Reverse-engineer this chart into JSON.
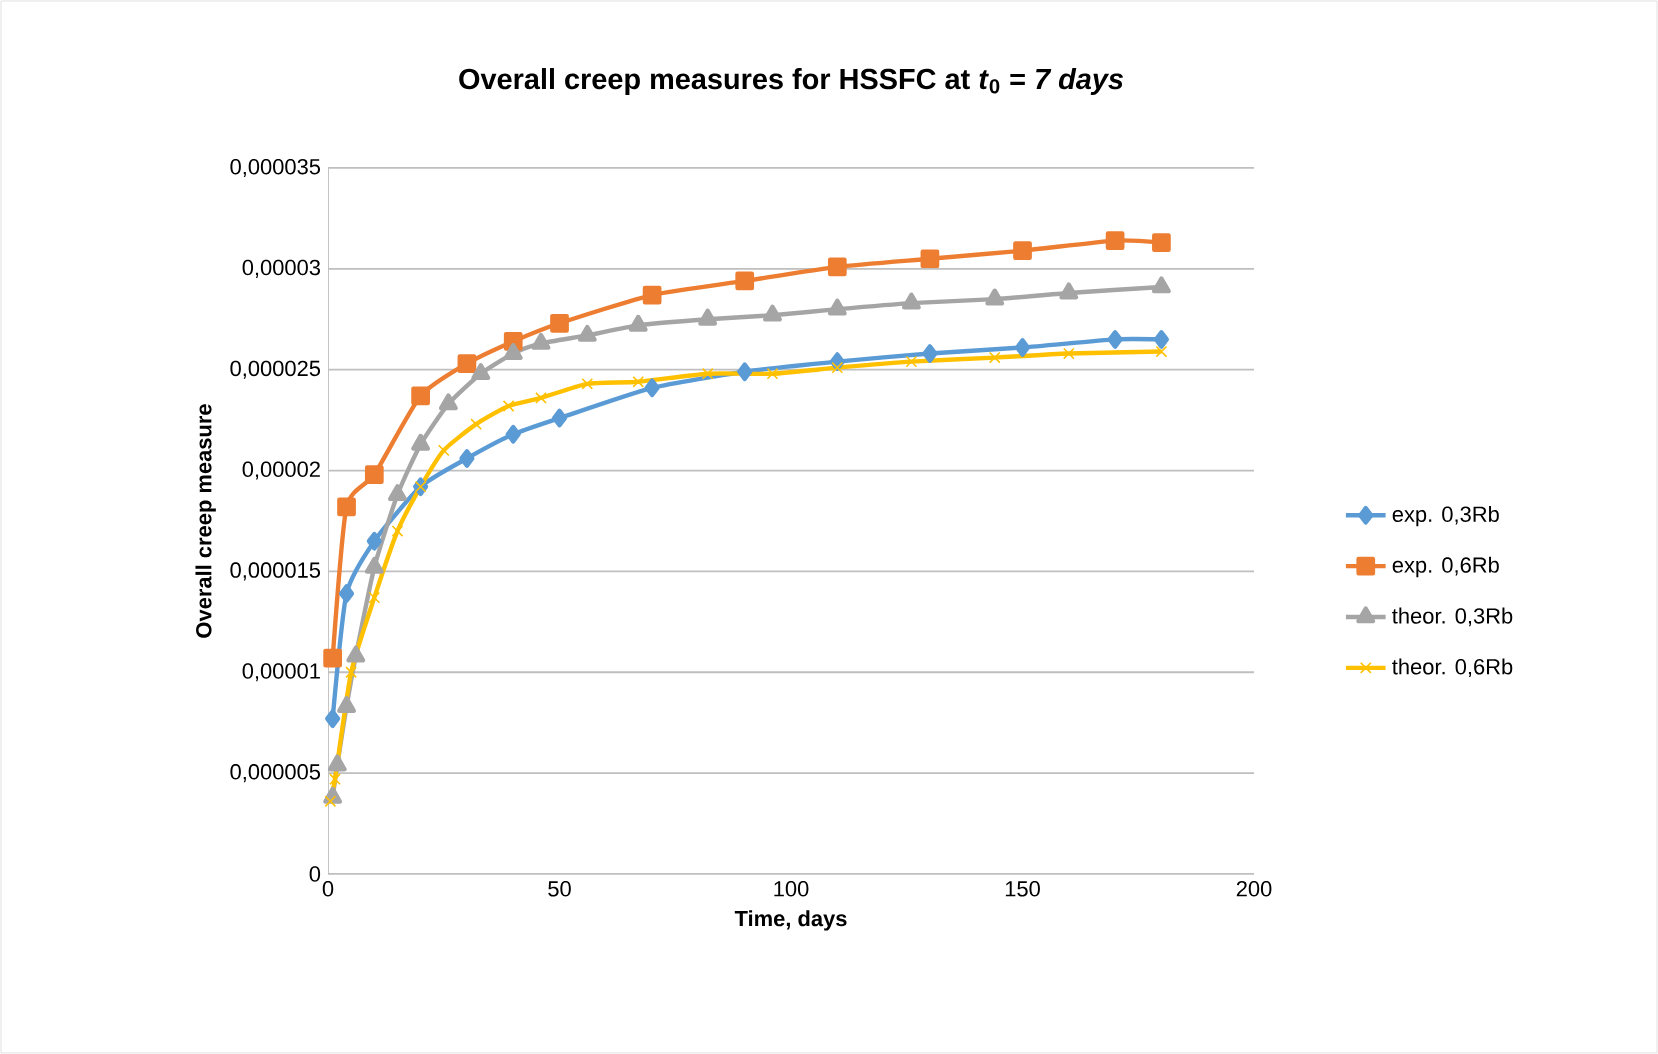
{
  "chart_data": {
    "type": "line",
    "title": "Overall creep measures for HSSFC at *t*$_{0}$ = *7 days*",
    "xlabel": "Time, days",
    "ylabel": "Overall creep measure",
    "xlim": [
      0,
      200
    ],
    "xticks": [
      0,
      50,
      100,
      150,
      200
    ],
    "ylim": [
      0,
      3.5e-05
    ],
    "yticks": [
      {
        "value": 0,
        "label": "0"
      },
      {
        "value": 5e-06,
        "label": "0,000005"
      },
      {
        "value": 1e-05,
        "label": "0,00001"
      },
      {
        "value": 1.5e-05,
        "label": "0,000015"
      },
      {
        "value": 2e-05,
        "label": "0,00002"
      },
      {
        "value": 2.5e-05,
        "label": "0,000025"
      },
      {
        "value": 3e-05,
        "label": "0,00003"
      },
      {
        "value": 3.5e-05,
        "label": "0,000035"
      }
    ],
    "grid": "y",
    "legend": "right",
    "line_style": "solid",
    "series": [
      {
        "name": "exp. 0,3Rb",
        "color": "#5b9bd5",
        "marker": "diamond",
        "x": [
          1,
          4,
          10,
          20,
          30,
          40,
          50,
          70,
          90,
          110,
          130,
          150,
          170,
          180
        ],
        "values": [
          7.7e-06,
          1.39e-05,
          1.65e-05,
          1.92e-05,
          2.06e-05,
          2.18e-05,
          2.26e-05,
          2.41e-05,
          2.49e-05,
          2.54e-05,
          2.58e-05,
          2.61e-05,
          2.65e-05,
          2.65e-05
        ]
      },
      {
        "name": "exp. 0,6Rb",
        "color": "#ed7d31",
        "marker": "square",
        "x": [
          1,
          4,
          10,
          20,
          30,
          40,
          50,
          70,
          90,
          110,
          130,
          150,
          170,
          180
        ],
        "values": [
          1.07e-05,
          1.82e-05,
          1.98e-05,
          2.37e-05,
          2.53e-05,
          2.64e-05,
          2.73e-05,
          2.87e-05,
          2.94e-05,
          3.01e-05,
          3.05e-05,
          3.09e-05,
          3.14e-05,
          3.13e-05
        ]
      },
      {
        "name": "theor. 0,3Rb",
        "color": "#a5a5a5",
        "marker": "triangle",
        "x": [
          1,
          2,
          4,
          6,
          10,
          15,
          20,
          26,
          33,
          40,
          46,
          56,
          67,
          82,
          96,
          110,
          126,
          144,
          160,
          180
        ],
        "values": [
          3.8e-06,
          5.4e-06,
          8.3e-06,
          1.08e-05,
          1.52e-05,
          1.88e-05,
          2.13e-05,
          2.33e-05,
          2.48e-05,
          2.58e-05,
          2.63e-05,
          2.67e-05,
          2.72e-05,
          2.75e-05,
          2.77e-05,
          2.8e-05,
          2.83e-05,
          2.85e-05,
          2.88e-05,
          2.91e-05
        ]
      },
      {
        "name": "theor. 0,6Rb",
        "color": "#ffc000",
        "marker": "cross",
        "x": [
          0.5,
          1.5,
          5,
          10,
          15,
          20,
          25,
          32,
          39,
          46,
          56,
          67,
          82,
          96,
          110,
          126,
          144,
          160,
          180
        ],
        "values": [
          3.6e-06,
          4.7e-06,
          1e-05,
          1.37e-05,
          1.7e-05,
          1.92e-05,
          2.1e-05,
          2.23e-05,
          2.32e-05,
          2.36e-05,
          2.43e-05,
          2.44e-05,
          2.48e-05,
          2.48e-05,
          2.51e-05,
          2.54e-05,
          2.56e-05,
          2.58e-05,
          2.59e-05
        ]
      }
    ]
  }
}
